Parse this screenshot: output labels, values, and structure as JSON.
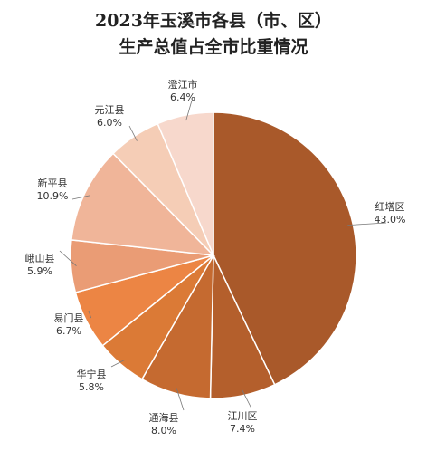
{
  "chart_data": {
    "type": "pie",
    "title_line1": "2023年玉溪市各县（市、区）",
    "title_line2": "生产总值占全市比重情况",
    "unit": "%",
    "start_angle_deg": 0,
    "direction": "clockwise",
    "slices": [
      {
        "name": "红塔区",
        "value": 43.0,
        "label": "43.0%",
        "color": "#A9592A"
      },
      {
        "name": "江川区",
        "value": 7.4,
        "label": "7.4%",
        "color": "#B45F2C"
      },
      {
        "name": "通海县",
        "value": 8.0,
        "label": "8.0%",
        "color": "#C56A30"
      },
      {
        "name": "华宁县",
        "value": 5.8,
        "label": "5.8%",
        "color": "#DB7A36"
      },
      {
        "name": "易门县",
        "value": 6.7,
        "label": "6.7%",
        "color": "#EC8544"
      },
      {
        "name": "峨山县",
        "value": 5.9,
        "label": "5.9%",
        "color": "#EA9C75"
      },
      {
        "name": "新平县",
        "value": 10.9,
        "label": "10.9%",
        "color": "#F0B599"
      },
      {
        "name": "元江县",
        "value": 6.0,
        "label": "6.0%",
        "color": "#F5CDB6"
      },
      {
        "name": "澄江市",
        "value": 6.4,
        "label": "6.4%",
        "color": "#F7D8CC"
      }
    ]
  }
}
